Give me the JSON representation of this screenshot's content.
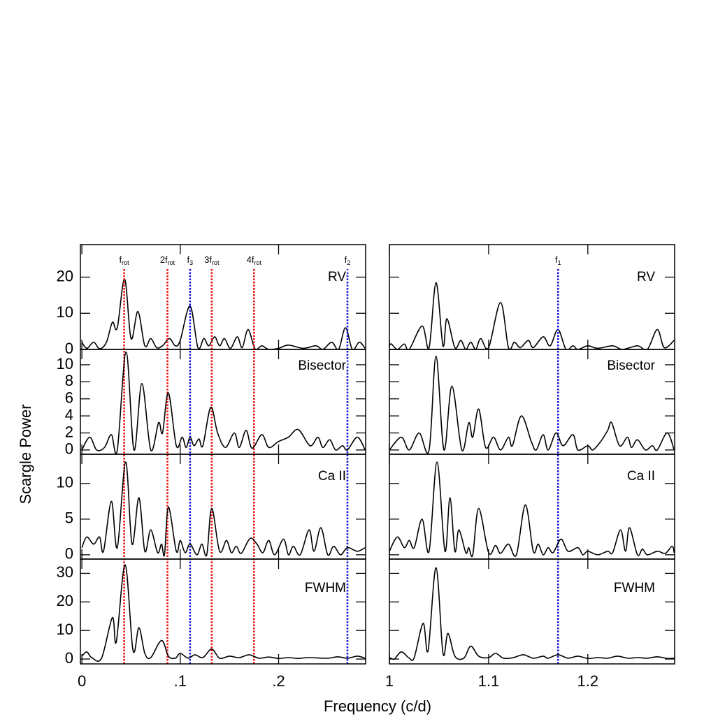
{
  "chart_data": [
    {
      "type": "line",
      "label": "RV",
      "ylabel": "Scargle Power",
      "xlabel": "Frequency (c/d)",
      "color": "#000000",
      "x": [
        0,
        0.005,
        0.012,
        0.018,
        0.025,
        0.031,
        0.036,
        0.0435,
        0.05,
        0.057,
        0.064,
        0.07,
        0.076,
        0.082,
        0.089,
        0.095,
        0.1,
        0.11,
        0.118,
        0.124,
        0.129,
        0.135,
        0.14,
        0.145,
        0.151,
        0.158,
        0.163,
        0.169,
        0.176,
        0.183,
        0.19,
        0.2,
        0.21,
        0.225,
        0.238,
        0.245,
        0.254,
        0.261,
        0.268,
        0.275,
        0.282,
        0.288
      ],
      "values": [
        2,
        0.3,
        2,
        0.2,
        2,
        7.5,
        6,
        19.5,
        3,
        10.5,
        1,
        3,
        0.5,
        1,
        3,
        1,
        2.5,
        12,
        0.5,
        3,
        1,
        3.5,
        1,
        3,
        0.3,
        3.5,
        0.5,
        5.5,
        0.2,
        1,
        0,
        0.3,
        1.2,
        0.3,
        1,
        0,
        2,
        0,
        6,
        0,
        2,
        0.3
      ],
      "xlim": [
        -0.0015,
        0.2885
      ],
      "ylim": [
        0,
        29
      ],
      "xticks": [
        0,
        0.1,
        0.2
      ],
      "yticks": [
        0,
        10,
        20
      ],
      "ytick_labels": true,
      "xtick_labels": false,
      "markers": [
        {
          "x": 0.043,
          "label": "f",
          "sub": "rot",
          "color": "#ee1111"
        },
        {
          "x": 0.087,
          "label": "2f",
          "sub": "rot",
          "color": "#ee1111"
        },
        {
          "x": 0.11,
          "label": "f",
          "sub": "3",
          "color": "#1515dd"
        },
        {
          "x": 0.132,
          "label": "3f",
          "sub": "rot",
          "color": "#ee1111"
        },
        {
          "x": 0.175,
          "label": "4f",
          "sub": "rot",
          "color": "#ee1111"
        },
        {
          "x": 0.27,
          "label": "f",
          "sub": "2",
          "color": "#1515dd"
        }
      ]
    },
    {
      "type": "line",
      "label": "Bisector",
      "color": "#000000",
      "x": [
        0,
        0.008,
        0.015,
        0.023,
        0.03,
        0.036,
        0.045,
        0.053,
        0.061,
        0.07,
        0.078,
        0.082,
        0.088,
        0.096,
        0.102,
        0.106,
        0.11,
        0.114,
        0.119,
        0.123,
        0.131,
        0.138,
        0.146,
        0.155,
        0.16,
        0.167,
        0.173,
        0.183,
        0.19,
        0.2,
        0.21,
        0.22,
        0.232,
        0.24,
        0.245,
        0.252,
        0.258,
        0.265,
        0.27,
        0.28,
        0.288
      ],
      "values": [
        0,
        1.5,
        0,
        0.3,
        1.8,
        0,
        11.5,
        0,
        7.8,
        0,
        3.2,
        2,
        6.7,
        0.5,
        1.5,
        0.3,
        1.5,
        0.5,
        1.3,
        0.5,
        5,
        2,
        0.3,
        2,
        0.3,
        2.3,
        0.2,
        1.8,
        0.3,
        1,
        1.5,
        2.4,
        0.5,
        1.5,
        0.3,
        1.2,
        0,
        0.5,
        0,
        1.5,
        0
      ],
      "xlim": [
        -0.0015,
        0.2885
      ],
      "ylim": [
        -0.5,
        11.8
      ],
      "xticks": [
        0,
        0.1,
        0.2
      ],
      "yticks": [
        0,
        2,
        4,
        6,
        8,
        10
      ],
      "ytick_labels": true,
      "xtick_labels": false
    },
    {
      "type": "line",
      "label": "Ca II",
      "color": "#000000",
      "x": [
        0,
        0.005,
        0.012,
        0.018,
        0.022,
        0.03,
        0.036,
        0.0445,
        0.051,
        0.058,
        0.064,
        0.07,
        0.077,
        0.081,
        0.084,
        0.088,
        0.096,
        0.1,
        0.105,
        0.11,
        0.117,
        0.122,
        0.127,
        0.132,
        0.14,
        0.147,
        0.152,
        0.157,
        0.162,
        0.171,
        0.178,
        0.184,
        0.19,
        0.196,
        0.205,
        0.21,
        0.215,
        0.222,
        0.231,
        0.236,
        0.243,
        0.25,
        0.256,
        0.263,
        0.27,
        0.28,
        0.288
      ],
      "values": [
        1,
        2.5,
        1.5,
        2.5,
        0.5,
        7.5,
        1,
        13,
        1.5,
        8,
        0.5,
        3.5,
        0.3,
        1.5,
        0,
        6.7,
        0.5,
        2,
        0.3,
        1.5,
        0,
        1.5,
        0,
        6.5,
        0.5,
        2,
        0.3,
        1.2,
        0.2,
        2.3,
        1.5,
        0.3,
        2,
        0,
        2.2,
        0,
        1.2,
        0,
        3.5,
        0.5,
        3.8,
        0,
        1.2,
        0,
        1,
        0.5,
        1
      ],
      "xlim": [
        -0.0015,
        0.2885
      ],
      "ylim": [
        -0.6,
        14.1
      ],
      "xticks": [
        0,
        0.1,
        0.2
      ],
      "yticks": [
        0,
        5,
        10
      ],
      "ytick_labels": true,
      "xtick_labels": false
    },
    {
      "type": "line",
      "label": "FWHM",
      "color": "#000000",
      "x": [
        0,
        0.005,
        0.01,
        0.02,
        0.031,
        0.035,
        0.044,
        0.052,
        0.058,
        0.064,
        0.07,
        0.081,
        0.088,
        0.095,
        0.1,
        0.108,
        0.115,
        0.123,
        0.132,
        0.14,
        0.15,
        0.16,
        0.17,
        0.18,
        0.19,
        0.2,
        0.21,
        0.22,
        0.23,
        0.25,
        0.26,
        0.27,
        0.28,
        0.288
      ],
      "values": [
        1,
        2.5,
        0.5,
        0.3,
        14.5,
        6,
        33,
        3,
        11,
        2,
        0.5,
        6.5,
        1,
        0.3,
        2,
        0.3,
        1.5,
        0.5,
        3.5,
        0.3,
        1,
        0.5,
        1.5,
        0.3,
        0.7,
        0.2,
        0.5,
        0.2,
        0.5,
        0.3,
        0.8,
        0.3,
        1,
        0.3
      ],
      "xlim": [
        -0.0015,
        0.2885
      ],
      "ylim": [
        -1.7,
        35
      ],
      "xticks": [
        0,
        {
          "value": 0.1,
          "label": ".1"
        },
        {
          "value": 0.2,
          "label": ".2"
        }
      ],
      "yticks": [
        0,
        10,
        20,
        30
      ],
      "ytick_labels": true,
      "xtick_labels": true
    },
    {
      "type": "line",
      "label": "RV",
      "color": "#000000",
      "x": [
        1,
        1.002,
        1.008,
        1.015,
        1.02,
        1.033,
        1.04,
        1.047,
        1.054,
        1.058,
        1.066,
        1.072,
        1.077,
        1.082,
        1.087,
        1.092,
        1.1,
        1.112,
        1.12,
        1.126,
        1.132,
        1.14,
        1.145,
        1.155,
        1.162,
        1.17,
        1.178,
        1.185,
        1.19,
        1.2,
        1.21,
        1.225,
        1.235,
        1.25,
        1.26,
        1.27,
        1.277,
        1.287
      ],
      "values": [
        1,
        1.5,
        0,
        1.5,
        0,
        6.5,
        0.5,
        18.5,
        1,
        8.5,
        0.5,
        2.5,
        0,
        2,
        0,
        3,
        0.5,
        13,
        0.5,
        2,
        0.5,
        2.5,
        0.5,
        3.5,
        1,
        5.5,
        0,
        1,
        0,
        1,
        0.3,
        1,
        0,
        1,
        0,
        5.5,
        0.5,
        2.5
      ],
      "xlim": [
        1,
        1.2875
      ],
      "ylim": [
        0,
        29
      ],
      "xticks": [
        1,
        1.1,
        1.2
      ],
      "yticks": [
        0,
        10,
        20
      ],
      "ytick_labels": false,
      "xtick_labels": false,
      "markers": [
        {
          "x": 1.17,
          "label": "f",
          "sub": "1",
          "color": "#1515dd"
        }
      ]
    },
    {
      "type": "line",
      "label": "Bisector",
      "color": "#000000",
      "x": [
        1,
        1.012,
        1.02,
        1.03,
        1.04,
        1.047,
        1.055,
        1.063,
        1.073,
        1.08,
        1.084,
        1.09,
        1.097,
        1.105,
        1.112,
        1.12,
        1.124,
        1.133,
        1.143,
        1.148,
        1.155,
        1.16,
        1.168,
        1.175,
        1.185,
        1.19,
        1.2,
        1.205,
        1.213,
        1.22,
        1.224,
        1.232,
        1.24,
        1.244,
        1.25,
        1.258,
        1.265,
        1.27,
        1.28,
        1.287
      ],
      "values": [
        0,
        1.5,
        0,
        2,
        0,
        11,
        0,
        7.5,
        0,
        3.2,
        1.5,
        4.8,
        0.3,
        1.5,
        0,
        1.5,
        0.5,
        4,
        1,
        0,
        1.8,
        0,
        2,
        0.5,
        1.8,
        0,
        0.5,
        0,
        1,
        2.3,
        3.2,
        0.5,
        1.5,
        0.3,
        1.2,
        0,
        0.5,
        0,
        2,
        0
      ],
      "xlim": [
        1,
        1.2875
      ],
      "ylim": [
        -0.5,
        11.8
      ],
      "xticks": [
        1,
        1.1,
        1.2
      ],
      "yticks": [
        0,
        2,
        4,
        6,
        8,
        10
      ],
      "ytick_labels": false,
      "xtick_labels": false
    },
    {
      "type": "line",
      "label": "Ca II",
      "color": "#000000",
      "x": [
        1,
        1.008,
        1.015,
        1.02,
        1.025,
        1.033,
        1.04,
        1.048,
        1.056,
        1.061,
        1.066,
        1.07,
        1.077,
        1.08,
        1.084,
        1.09,
        1.1,
        1.107,
        1.112,
        1.12,
        1.128,
        1.137,
        1.145,
        1.15,
        1.155,
        1.16,
        1.165,
        1.173,
        1.18,
        1.19,
        1.195,
        1.2,
        1.21,
        1.22,
        1.225,
        1.233,
        1.238,
        1.242,
        1.25,
        1.255,
        1.26,
        1.27,
        1.278,
        1.285,
        1.287
      ],
      "values": [
        0.5,
        2.5,
        1,
        2,
        1,
        5,
        0.5,
        13,
        0.5,
        8,
        0.5,
        3.5,
        0.3,
        1,
        0,
        6.5,
        0.3,
        1.3,
        0.2,
        1.5,
        0,
        7,
        0.5,
        1.5,
        0,
        1,
        0.3,
        2.2,
        0.5,
        1,
        0,
        0.5,
        0,
        0.5,
        0.3,
        3.5,
        0.5,
        3.8,
        0,
        0.8,
        0,
        0.5,
        0.2,
        1.2,
        0.3
      ],
      "xlim": [
        1,
        1.2875
      ],
      "ylim": [
        -0.6,
        14.1
      ],
      "xticks": [
        1,
        1.1,
        1.2
      ],
      "yticks": [
        0,
        5,
        10
      ],
      "ytick_labels": false,
      "xtick_labels": false
    },
    {
      "type": "line",
      "label": "FWHM",
      "color": "#000000",
      "x": [
        1,
        1.005,
        1.012,
        1.02,
        1.025,
        1.034,
        1.039,
        1.047,
        1.054,
        1.059,
        1.066,
        1.075,
        1.082,
        1.09,
        1.1,
        1.107,
        1.115,
        1.125,
        1.135,
        1.145,
        1.155,
        1.16,
        1.17,
        1.18,
        1.19,
        1.2,
        1.21,
        1.22,
        1.23,
        1.24,
        1.25,
        1.26,
        1.27,
        1.28,
        1.287
      ],
      "values": [
        0.5,
        0,
        2.5,
        0.3,
        0.5,
        12.5,
        3,
        32,
        2,
        9,
        1,
        0.3,
        4.5,
        1,
        0.5,
        2,
        0.3,
        0.5,
        1.5,
        0.3,
        1,
        0.3,
        1.5,
        0.3,
        1,
        0.2,
        0.5,
        0.3,
        1,
        0.3,
        0.5,
        0.3,
        0.8,
        0.2,
        0.3
      ],
      "xlim": [
        1,
        1.2875
      ],
      "ylim": [
        -1.7,
        35
      ],
      "xticks": [
        1,
        1.1,
        1.2
      ],
      "yticks": [
        0,
        10,
        20,
        30
      ],
      "ytick_labels": false,
      "xtick_labels": true
    }
  ]
}
